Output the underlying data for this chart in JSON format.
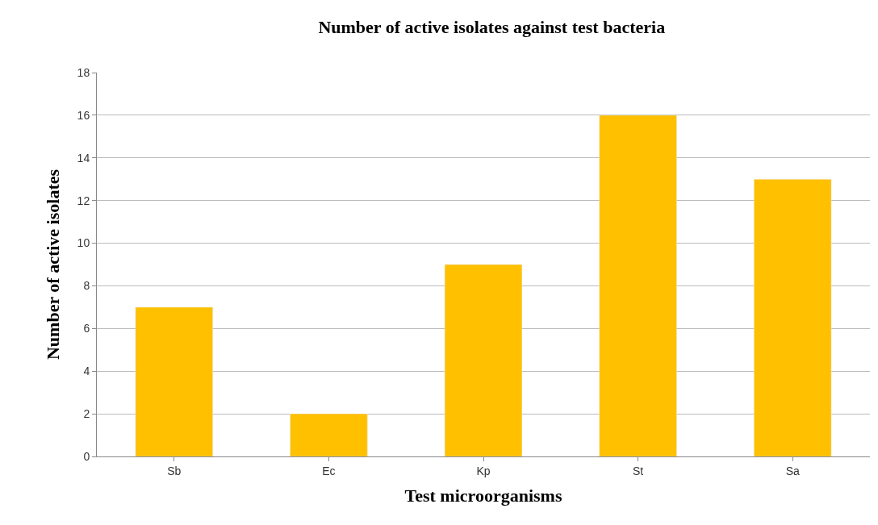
{
  "chart_data": {
    "type": "bar",
    "title": "Number of active isolates against test bacteria",
    "xlabel": "Test microorganisms",
    "ylabel": "Number of active isolates",
    "categories": [
      "Sb",
      "Ec",
      "Kp",
      "St",
      "Sa"
    ],
    "values": [
      7,
      2,
      9,
      16,
      13
    ],
    "color": "#ffc000",
    "ylim": [
      0,
      18
    ],
    "yticks": [
      0,
      2,
      4,
      6,
      8,
      10,
      12,
      14,
      16,
      18
    ],
    "grid": "y"
  }
}
